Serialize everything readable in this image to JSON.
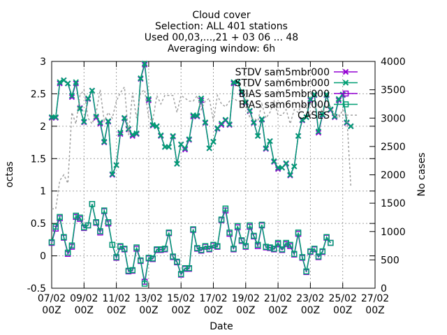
{
  "title_lines": [
    "Cloud cover",
    "Selection: ALL    401 stations",
    "Used 00,03,...,21 + 03 06 ... 48",
    "Averaging window:  6h"
  ],
  "colors": {
    "purple": "#9400d3",
    "green": "#009e73",
    "cases": "#a0a0a0",
    "grid": "#a0a0a0"
  },
  "chart_data": {
    "type": "line",
    "title": "Cloud cover",
    "xlabel": "Date",
    "ylabel": "octas",
    "y2label": "No cases",
    "ylim": [
      -0.5,
      3
    ],
    "y2lim": [
      0,
      4000
    ],
    "xlim": [
      "07/02 00Z",
      "27/02 00Z"
    ],
    "grid": true,
    "legend_position": "top-right",
    "x_ticks": [
      {
        "day": 7,
        "line1": "07/02",
        "line2": "00Z"
      },
      {
        "day": 9,
        "line1": "09/02",
        "line2": "00Z"
      },
      {
        "day": 11,
        "line1": "11/02",
        "line2": "00Z"
      },
      {
        "day": 13,
        "line1": "13/02",
        "line2": "00Z"
      },
      {
        "day": 15,
        "line1": "15/02",
        "line2": "00Z"
      },
      {
        "day": 17,
        "line1": "17/02",
        "line2": "00Z"
      },
      {
        "day": 19,
        "line1": "19/02",
        "line2": "00Z"
      },
      {
        "day": 21,
        "line1": "21/02",
        "line2": "00Z"
      },
      {
        "day": 23,
        "line1": "23/02",
        "line2": "00Z"
      },
      {
        "day": 25,
        "line1": "25/02",
        "line2": "00Z"
      },
      {
        "day": 27,
        "line1": "27/02",
        "line2": "00Z"
      }
    ],
    "y_ticks": [
      "-0.5",
      "0",
      "0.5",
      "1",
      "1.5",
      "2",
      "2.5",
      "3"
    ],
    "y2_ticks": [
      "0",
      "500",
      "1000",
      "1500",
      "2000",
      "2500",
      "3000",
      "3500",
      "4000"
    ],
    "x_days": [
      7.0,
      7.25,
      7.5,
      7.75,
      8.0,
      8.25,
      8.5,
      8.75,
      9.0,
      9.25,
      9.5,
      9.75,
      10.0,
      10.25,
      10.5,
      10.75,
      11.0,
      11.25,
      11.5,
      11.75,
      12.0,
      12.25,
      12.5,
      12.75,
      13.0,
      13.25,
      13.5,
      13.75,
      14.0,
      14.25,
      14.5,
      14.75,
      15.0,
      15.25,
      15.5,
      15.75,
      16.0,
      16.25,
      16.5,
      16.75,
      17.0,
      17.25,
      17.5,
      17.75,
      18.0,
      18.25,
      18.5,
      18.75,
      19.0,
      19.25,
      19.5,
      19.75,
      20.0,
      20.25,
      20.5,
      20.75,
      21.0,
      21.25,
      21.5,
      21.75,
      22.0,
      22.25,
      22.5,
      22.75,
      23.0,
      23.25,
      23.5,
      23.75,
      24.0,
      24.25,
      24.5,
      24.75,
      25.0,
      25.25,
      25.5
    ],
    "series": [
      {
        "name": "STDV sam5mbr000",
        "axis": "y1",
        "color": "#9400d3",
        "marker": "x",
        "values": [
          2.13,
          2.13,
          2.66,
          2.71,
          2.66,
          2.45,
          2.66,
          2.28,
          2.06,
          2.42,
          2.55,
          2.13,
          2.04,
          1.75,
          2.07,
          1.25,
          1.4,
          1.88,
          2.12,
          1.95,
          1.85,
          1.88,
          2.73,
          2.95,
          2.4,
          2.01,
          2.0,
          1.85,
          1.68,
          1.68,
          1.84,
          1.42,
          1.72,
          1.64,
          1.79,
          2.15,
          2.15,
          2.4,
          2.05,
          1.66,
          1.76,
          1.96,
          2.02,
          2.09,
          2.02,
          2.66,
          2.68,
          2.52,
          2.36,
          2.23,
          2.05,
          1.85,
          2.1,
          1.65,
          1.77,
          1.45,
          1.34,
          1.36,
          1.42,
          1.24,
          1.38,
          1.85,
          2.09,
          2.14,
          2.4,
          2.48,
          1.9,
          2.17,
          2.48,
          2.25,
          2.14,
          2.4,
          2.48,
          2.05,
          2.0
        ]
      },
      {
        "name": "STDV sam6mbr000",
        "axis": "y1",
        "color": "#009e73",
        "marker": "x",
        "values": [
          2.14,
          2.14,
          2.68,
          2.71,
          2.66,
          2.47,
          2.68,
          2.27,
          2.07,
          2.43,
          2.55,
          2.15,
          2.06,
          1.76,
          2.08,
          1.26,
          1.4,
          1.9,
          2.13,
          1.96,
          1.87,
          1.89,
          2.74,
          2.97,
          2.42,
          2.02,
          2.0,
          1.86,
          1.68,
          1.68,
          1.85,
          1.42,
          1.72,
          1.66,
          1.8,
          2.17,
          2.16,
          2.43,
          2.06,
          1.66,
          1.76,
          1.97,
          2.04,
          2.1,
          2.03,
          2.68,
          2.68,
          2.53,
          2.37,
          2.24,
          2.06,
          1.85,
          2.11,
          1.66,
          1.77,
          1.46,
          1.36,
          1.36,
          1.43,
          1.25,
          1.38,
          1.85,
          2.1,
          2.14,
          2.42,
          2.49,
          1.92,
          2.18,
          2.49,
          2.26,
          2.15,
          2.42,
          2.49,
          2.06,
          2.0
        ]
      },
      {
        "name": "BIAS sam5mbr000",
        "axis": "y1",
        "color": "#9400d3",
        "marker": "box",
        "values": [
          0.2,
          0.42,
          0.58,
          0.28,
          0.03,
          0.14,
          0.6,
          0.57,
          0.43,
          0.47,
          0.8,
          0.51,
          0.36,
          0.69,
          0.5,
          0.17,
          -0.03,
          0.14,
          0.1,
          -0.24,
          -0.23,
          0.11,
          -0.08,
          -0.4,
          -0.04,
          -0.05,
          0.09,
          0.09,
          0.1,
          0.35,
          -0.02,
          -0.1,
          -0.29,
          -0.2,
          -0.2,
          0.4,
          0.11,
          0.08,
          0.14,
          0.1,
          0.16,
          0.14,
          0.55,
          0.7,
          0.34,
          0.1,
          0.44,
          0.23,
          0.14,
          0.45,
          0.3,
          0.15,
          0.47,
          0.13,
          0.12,
          0.1,
          0.18,
          0.09,
          0.18,
          0.15,
          0.02,
          0.34,
          -0.03,
          -0.25,
          0.06,
          0.1,
          -0.02,
          0.06,
          0.28,
          0.2
        ]
      },
      {
        "name": "BIAS sam6mbr000",
        "axis": "y1",
        "color": "#009e73",
        "marker": "box",
        "values": [
          0.21,
          0.45,
          0.6,
          0.29,
          0.05,
          0.16,
          0.62,
          0.59,
          0.44,
          0.47,
          0.8,
          0.52,
          0.38,
          0.7,
          0.52,
          0.17,
          -0.02,
          0.15,
          0.11,
          -0.23,
          -0.22,
          0.13,
          -0.07,
          -0.43,
          -0.03,
          -0.04,
          0.1,
          0.1,
          0.11,
          0.36,
          -0.01,
          -0.09,
          -0.28,
          -0.19,
          -0.19,
          0.41,
          0.12,
          0.09,
          0.15,
          0.11,
          0.17,
          0.15,
          0.56,
          0.73,
          0.36,
          0.11,
          0.46,
          0.24,
          0.15,
          0.47,
          0.31,
          0.17,
          0.48,
          0.14,
          0.13,
          0.11,
          0.2,
          0.1,
          0.2,
          0.17,
          0.03,
          0.36,
          -0.02,
          -0.24,
          0.07,
          0.11,
          -0.01,
          0.07,
          0.29,
          0.2
        ]
      },
      {
        "name": "CASES",
        "axis": "y2",
        "color": "#a0a0a0",
        "marker": "none",
        "values": [
          1400,
          1400,
          1900,
          2000,
          1850,
          3100,
          2900,
          3400,
          3500,
          3000,
          2900,
          3100,
          3500,
          2950,
          3100,
          3000,
          3300,
          3450,
          3550,
          2700,
          3450,
          3000,
          3450,
          3500,
          3000,
          2950,
          3400,
          3250,
          3400,
          3400,
          3400,
          3100,
          3400,
          3350,
          3300,
          3300,
          3400,
          3150,
          3300,
          3350,
          2950,
          3400,
          3250,
          3200,
          3300,
          3350,
          3300,
          3300,
          3350,
          3000,
          3000,
          2950,
          3250,
          3000,
          3100,
          3300,
          3050,
          3050,
          3150,
          2900,
          3150,
          3100,
          3250,
          3200,
          3050,
          3150,
          3250,
          3100,
          3200,
          3200,
          3050,
          3000,
          3150,
          3050,
          1800
        ]
      }
    ],
    "x_days_bias": [
      7.0,
      7.25,
      7.5,
      7.75,
      8.0,
      8.25,
      8.5,
      8.75,
      9.0,
      9.25,
      9.5,
      9.75,
      10.0,
      10.25,
      10.5,
      10.75,
      11.0,
      11.25,
      11.5,
      11.75,
      12.0,
      12.25,
      12.5,
      12.75,
      13.0,
      13.25,
      13.5,
      13.75,
      14.0,
      14.25,
      14.5,
      14.75,
      15.0,
      15.25,
      15.5,
      15.75,
      16.0,
      16.25,
      16.5,
      16.75,
      17.0,
      17.25,
      17.5,
      17.75,
      18.0,
      18.25,
      18.5,
      18.75,
      19.0,
      19.25,
      19.5,
      19.75,
      20.0,
      20.25,
      20.5,
      20.75,
      21.0,
      21.25,
      21.5,
      21.75,
      22.0,
      22.25,
      22.5,
      22.75,
      23.0,
      23.25,
      23.5,
      23.75,
      24.0,
      24.25
    ]
  }
}
